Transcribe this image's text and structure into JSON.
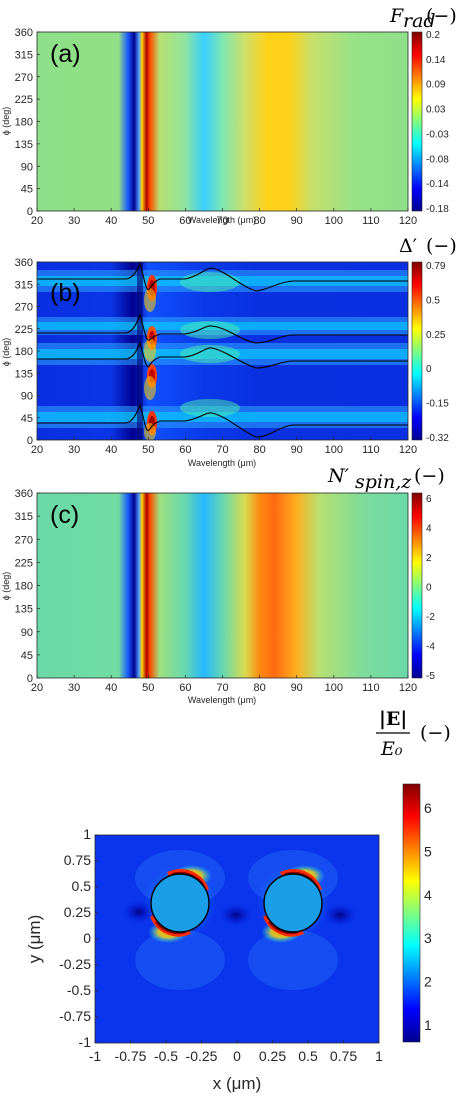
{
  "chart_data": [
    {
      "type": "heatmap",
      "panel_label": "(a)",
      "colorbar_title": {
        "symbol": "F",
        "subscript": "rad",
        "unit": "(−)"
      },
      "colorbar_ticks": [
        "0.2",
        "0.14",
        "0.09",
        "0.03",
        "-0.03",
        "-0.08",
        "-0.14",
        "-0.18"
      ],
      "clim": [
        -0.18,
        0.2
      ],
      "xlabel": "Wavelength (μm)",
      "ylabel": "ϕ (deg)",
      "xlim": [
        20,
        120
      ],
      "ylim": [
        0,
        360
      ],
      "xticks": [
        "20",
        "30",
        "40",
        "50",
        "60",
        "70",
        "80",
        "90",
        "100",
        "110",
        "120"
      ],
      "yticks": [
        "0",
        "45",
        "90",
        "135",
        "180",
        "225",
        "270",
        "315",
        "360"
      ],
      "features": [
        {
          "wavelength": 46.5,
          "value": -0.18
        },
        {
          "wavelength": 49.5,
          "value": 0.2
        },
        {
          "wavelength": 65,
          "value": -0.06
        },
        {
          "wavelength": 82,
          "value": 0.1
        }
      ]
    },
    {
      "type": "heatmap",
      "panel_label": "(b)",
      "colorbar_title": {
        "symbol": "Δ′",
        "subscript": "",
        "unit": "(−)"
      },
      "colorbar_ticks": [
        "0.79",
        "0.5",
        "0.25",
        "0",
        "-0.15",
        "-0.32"
      ],
      "clim": [
        -0.32,
        0.79
      ],
      "xlabel": "Wavelength (μm)",
      "ylabel": "ϕ (deg)",
      "xlim": [
        20,
        120
      ],
      "ylim": [
        0,
        360
      ],
      "xticks": [
        "20",
        "30",
        "40",
        "50",
        "60",
        "70",
        "80",
        "90",
        "100",
        "110",
        "120"
      ],
      "yticks": [
        "0",
        "45",
        "90",
        "135",
        "180",
        "225",
        "270",
        "315",
        "360"
      ],
      "zero_contour_baselines_deg": [
        325,
        215,
        145,
        35
      ]
    },
    {
      "type": "heatmap",
      "panel_label": "(c)",
      "colorbar_title": {
        "symbol": "N′",
        "subscript": "spin,z",
        "unit": "(−)"
      },
      "colorbar_ticks": [
        "6",
        "4",
        "2",
        "0",
        "-2",
        "-4",
        "-5"
      ],
      "clim": [
        -5,
        6.3
      ],
      "xlabel": "Wavelength (μm)",
      "ylabel": "ϕ (deg)",
      "xlim": [
        20,
        120
      ],
      "ylim": [
        0,
        360
      ],
      "xticks": [
        "20",
        "30",
        "40",
        "50",
        "60",
        "70",
        "80",
        "90",
        "100",
        "110",
        "120"
      ],
      "yticks": [
        "0",
        "45",
        "90",
        "135",
        "180",
        "225",
        "270",
        "315",
        "360"
      ],
      "features": [
        {
          "wavelength": 46.5,
          "value": -5
        },
        {
          "wavelength": 49.5,
          "value": 6.3
        },
        {
          "wavelength": 65,
          "value": -1.5
        },
        {
          "wavelength": 82,
          "value": 3.5
        }
      ]
    },
    {
      "type": "heatmap",
      "panel_label": "(d)",
      "colorbar_title": {
        "symbol": "|E|",
        "denominator": "E₀",
        "unit": "(−)"
      },
      "colorbar_ticks": [
        "6",
        "5",
        "4",
        "3",
        "2",
        "1"
      ],
      "clim": [
        0.8,
        6.8
      ],
      "xlabel": "x (μm)",
      "ylabel": "y (μm)",
      "xlim": [
        -1,
        1
      ],
      "ylim": [
        -1,
        1
      ],
      "xticks": [
        "-1",
        "-0.75",
        "-0.5",
        "-0.25",
        "0",
        "0.25",
        "0.5",
        "0.75",
        "1"
      ],
      "yticks": [
        "1",
        "0.75",
        "0.5",
        "0.25",
        "0",
        "-0.25",
        "-0.5",
        "-0.75",
        "-1"
      ],
      "particles": [
        {
          "cx": -0.4,
          "cy": 0,
          "r": 0.2
        },
        {
          "cx": 0.4,
          "cy": 0,
          "r": 0.2
        }
      ]
    }
  ]
}
